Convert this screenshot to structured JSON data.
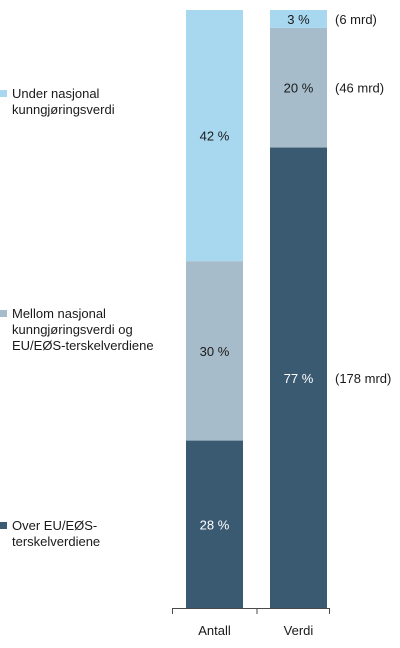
{
  "chart_data": {
    "type": "bar",
    "stacked": true,
    "orientation": "vertical",
    "categories": [
      "Antall",
      "Verdi"
    ],
    "series": [
      {
        "name": "Over EU/EØS-terskelverdiene",
        "color": "#3a5a72",
        "values": [
          28,
          77
        ],
        "value_labels": [
          "28 %",
          "77 %"
        ]
      },
      {
        "name": "Mellom nasjonal kunngjøringsverdi og EU/EØS-terskelverdiene",
        "color": "#a6bccb",
        "values": [
          30,
          20
        ],
        "value_labels": [
          "30 %",
          "20 %"
        ]
      },
      {
        "name": "Under nasjonal kunngjøringsverdi",
        "color": "#a8d8ef",
        "values": [
          42,
          3
        ],
        "value_labels": [
          "42 %",
          "3 %"
        ]
      }
    ],
    "annotations": {
      "Verdi": [
        {
          "series": "Over EU/EØS-terskelverdiene",
          "text": "(178 mrd)"
        },
        {
          "series": "Mellom nasjonal kunngjøringsverdi og EU/EØS-terskelverdiene",
          "text": "(46 mrd)"
        },
        {
          "series": "Under nasjonal kunngjøringsverdi",
          "text": "(6 mrd)"
        }
      ]
    },
    "ylim": [
      0,
      100
    ],
    "y_axis_visible": false,
    "grid": false,
    "legend_position": "left"
  },
  "legend": [
    {
      "label": "Under nasjonal kunngjøringsverdi",
      "color": "#a8d8ef"
    },
    {
      "label": "Mellom nasjonal kunngjøringsverdi og EU/EØS-terskelverdiene",
      "color": "#a6bccb"
    },
    {
      "label": "Over EU/EØS-terskelverdiene",
      "color": "#3a5a72"
    }
  ],
  "colors": {
    "axis": "#4a4a4a",
    "light_text": "#1a1a1a",
    "dark_text": "#ffffff"
  }
}
